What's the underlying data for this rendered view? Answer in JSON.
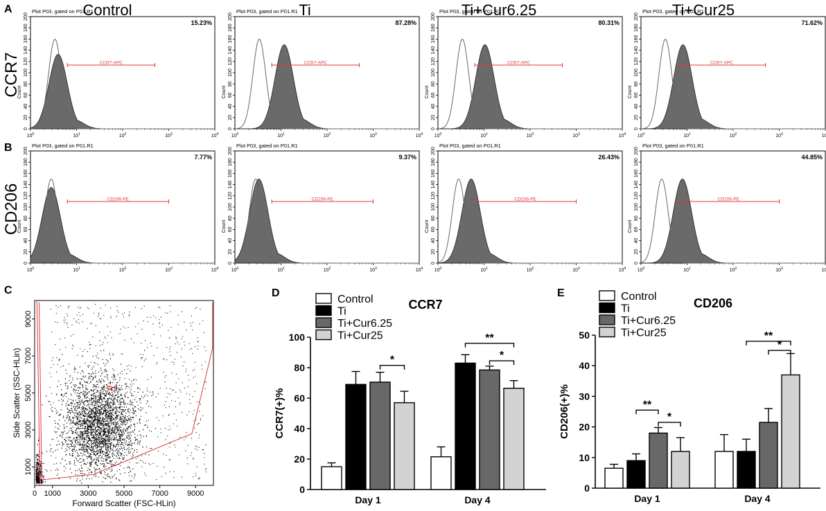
{
  "panel_letters": {
    "A": "A",
    "B": "B",
    "C": "C",
    "D": "D",
    "E": "E"
  },
  "row_labels": [
    "CCR7",
    "CD206"
  ],
  "column_titles": [
    "Control",
    "Ti",
    "Ti+Cur6.25",
    "Ti+Cur25"
  ],
  "histograms": {
    "plot_caption": "Plot P03, gated on P01.R1",
    "y_axis_label": "Count",
    "y_ticks": [
      "0",
      "20",
      "40",
      "60",
      "80",
      "100",
      "120",
      "140",
      "160",
      "180",
      "200"
    ],
    "x_ticks": [
      {
        "base": "10",
        "exp": "0"
      },
      {
        "base": "10",
        "exp": "1"
      },
      {
        "base": "10",
        "exp": "2"
      },
      {
        "base": "10",
        "exp": "3"
      },
      {
        "base": "10",
        "exp": "4"
      }
    ],
    "gate_labels": [
      "CCR7-APC",
      "CD206-PE"
    ],
    "colors": {
      "filled": "#6a6a6a",
      "outline": "#666666",
      "gate": "#e0393b"
    },
    "percentages": [
      [
        "15.23%",
        "87.28%",
        "80.31%",
        "71.62%"
      ],
      [
        "7.77%",
        "9.37%",
        "26.43%",
        "44.85%"
      ]
    ]
  },
  "scatter": {
    "type": "scatter",
    "xlabel": "Forward Scatter (FSC-HLin)",
    "ylabel": "Side Scatter (SSC-HLin)",
    "x_ticks": [
      "0",
      "1000",
      "3000",
      "5000",
      "7000",
      "9000"
    ],
    "y_ticks": [
      "1000",
      "3000",
      "5000",
      "7000",
      "9000"
    ],
    "gate_label": "R1",
    "xlim": [
      0,
      10000
    ],
    "ylim": [
      0,
      10000
    ]
  },
  "chart_data": [
    {
      "type": "bar",
      "title": "CCR7",
      "ylabel": "CCR7(+)%",
      "xlabel": "",
      "ylim": [
        0,
        100
      ],
      "y_ticks": [
        "0",
        "20",
        "40",
        "60",
        "80",
        "100"
      ],
      "categories": [
        "Day 1",
        "Day 4"
      ],
      "legend": [
        "Control",
        "Ti",
        "Ti+Cur6.25",
        "Ti+Cur25"
      ],
      "series": [
        {
          "name": "Control",
          "color": "#ffffff",
          "values": [
            15,
            21.5
          ],
          "errors": [
            2.5,
            6.5
          ]
        },
        {
          "name": "Ti",
          "color": "#000000",
          "values": [
            69,
            83
          ],
          "errors": [
            8.5,
            5.5
          ]
        },
        {
          "name": "Ti+Cur6.25",
          "color": "#686868",
          "values": [
            70.5,
            78.5
          ],
          "errors": [
            6.5,
            2.5
          ]
        },
        {
          "name": "Ti+Cur25",
          "color": "#d3d3d3",
          "values": [
            57,
            66.5
          ],
          "errors": [
            7.5,
            5
          ]
        }
      ],
      "significance": [
        {
          "label": "*",
          "category": "Day 1",
          "from": "Ti+Cur6.25",
          "to": "Ti+Cur25",
          "y": 81.5
        },
        {
          "label": "**",
          "category": "Day 4",
          "from": "Ti",
          "to": "Ti+Cur25",
          "y": 96
        },
        {
          "label": "*",
          "category": "Day 4",
          "from": "Ti+Cur6.25",
          "to": "Ti+Cur25",
          "y": 84.5
        }
      ]
    },
    {
      "type": "bar",
      "title": "CD206",
      "ylabel": "CD206(+)%",
      "xlabel": "",
      "ylim": [
        0,
        50
      ],
      "y_ticks": [
        "0",
        "10",
        "20",
        "30",
        "40",
        "50"
      ],
      "categories": [
        "Day 1",
        "Day 4"
      ],
      "legend": [
        "Control",
        "Ti",
        "Ti+Cur6.25",
        "Ti+Cur25"
      ],
      "series": [
        {
          "name": "Control",
          "color": "#ffffff",
          "values": [
            6.5,
            12
          ],
          "errors": [
            1.3,
            5.5
          ]
        },
        {
          "name": "Ti",
          "color": "#000000",
          "values": [
            9,
            12
          ],
          "errors": [
            2.2,
            4
          ]
        },
        {
          "name": "Ti+Cur6.25",
          "color": "#686868",
          "values": [
            18,
            21.5
          ],
          "errors": [
            1.8,
            4.5
          ]
        },
        {
          "name": "Ti+Cur25",
          "color": "#d3d3d3",
          "values": [
            12,
            37
          ],
          "errors": [
            4.5,
            7
          ]
        }
      ],
      "significance": [
        {
          "label": "**",
          "category": "Day 1",
          "from": "Ti",
          "to": "Ti+Cur6.25",
          "y": 25.5
        },
        {
          "label": "*",
          "category": "Day 1",
          "from": "Ti+Cur6.25",
          "to": "Ti+Cur25",
          "y": 21.5
        },
        {
          "label": "**",
          "category": "Day 4",
          "from": "Ti",
          "to": "Ti+Cur25",
          "y": 48
        },
        {
          "label": "*",
          "category": "Day 4",
          "from": "Ti+Cur6.25",
          "to": "Ti+Cur25",
          "y": 45
        }
      ]
    }
  ]
}
